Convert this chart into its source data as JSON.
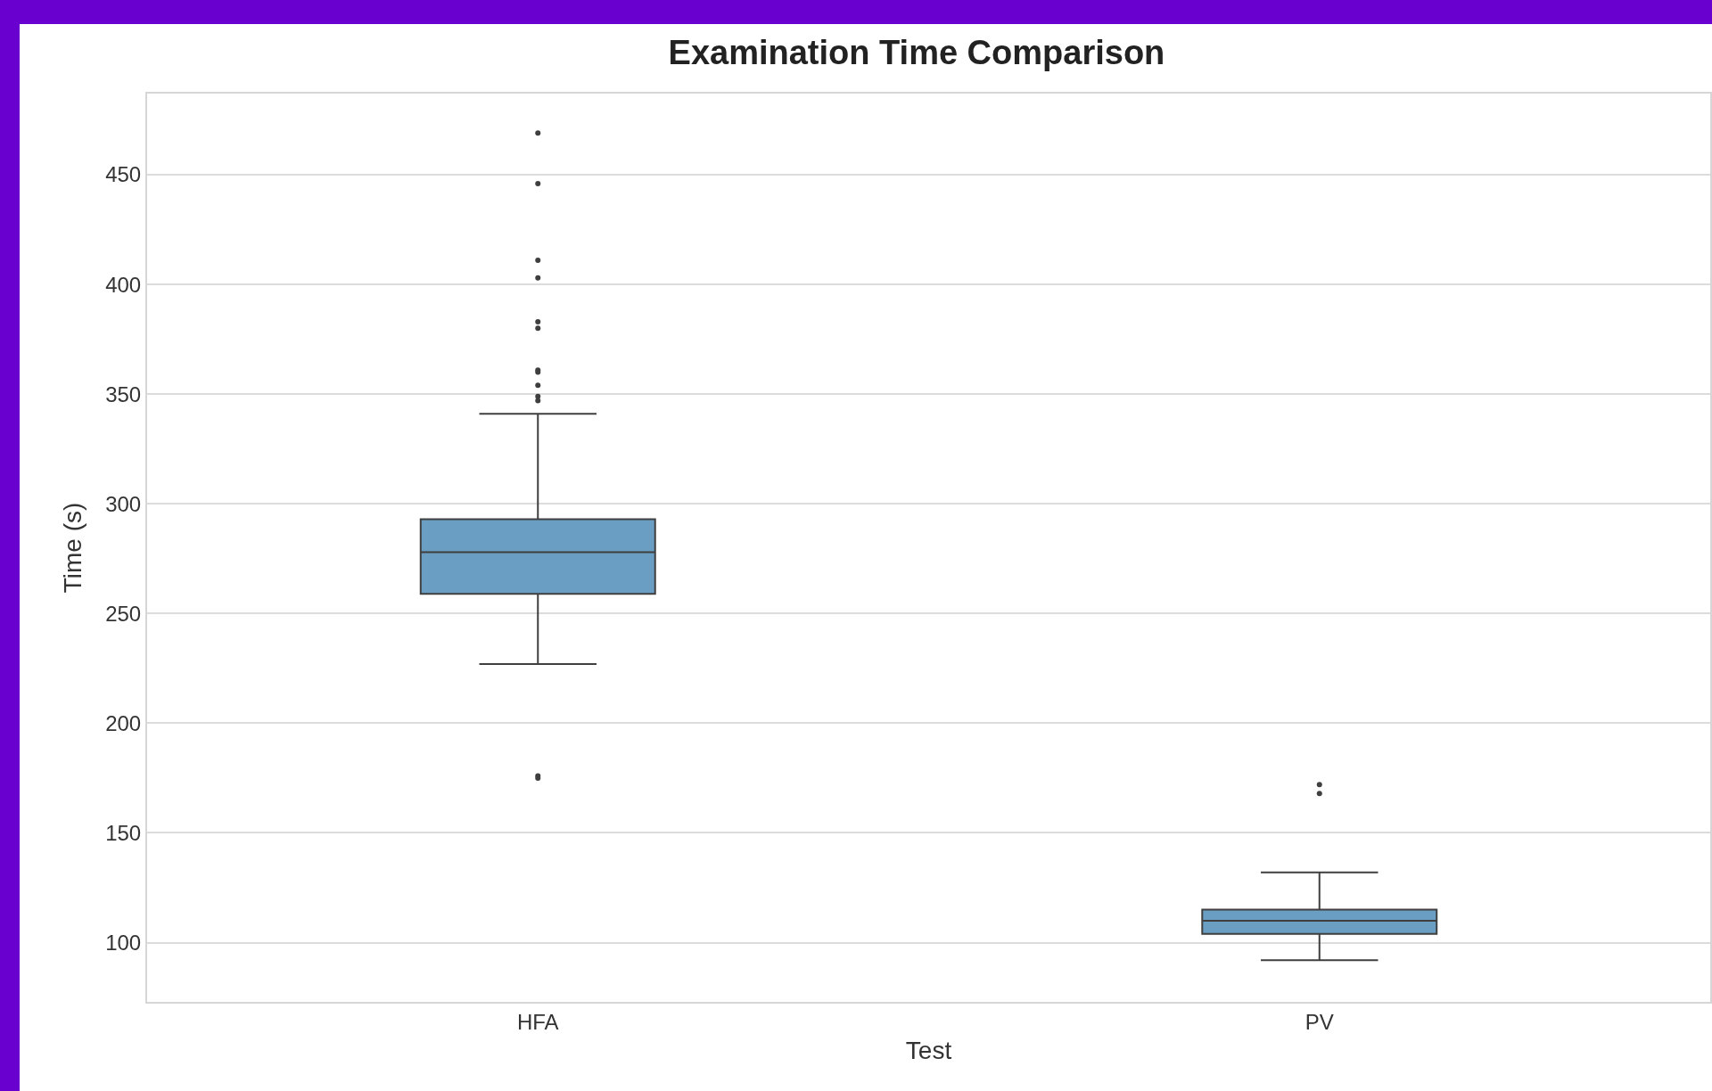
{
  "chart_data": {
    "type": "box",
    "title": "Examination Time Comparison",
    "xlabel": "Test",
    "ylabel": "Time (s)",
    "categories": [
      "HFA",
      "PV"
    ],
    "series": [
      {
        "color": "#6a9ec2",
        "boxes": [
          {
            "low": 227,
            "q1": 259,
            "median": 278,
            "q3": 293,
            "high": 341,
            "outliers": [
              469,
              446,
              411,
              403,
              383,
              380,
              361,
              360,
              354,
              349,
              347,
              176,
              175
            ]
          },
          {
            "low": 92,
            "q1": 104,
            "median": 110,
            "q3": 115,
            "high": 132,
            "outliers": [
              172,
              168
            ]
          }
        ]
      }
    ],
    "ylim": [
      73,
      487
    ],
    "yticks": [
      100,
      150,
      200,
      250,
      300,
      350,
      400,
      450
    ],
    "grid": "y"
  }
}
